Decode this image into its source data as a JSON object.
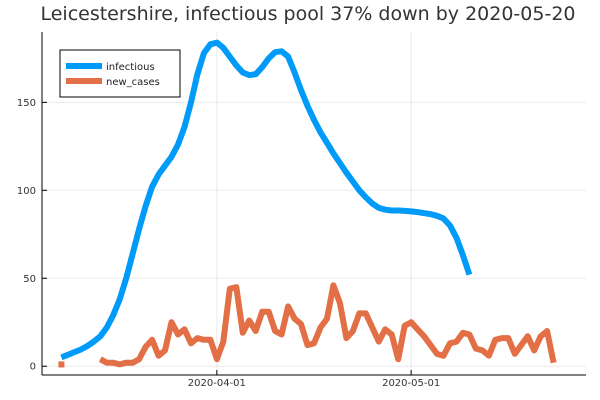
{
  "chart_data": {
    "type": "line",
    "title": "Leicestershire, infectious pool 37% down by 2020-05-20",
    "xlabel": "",
    "ylabel": "",
    "x_start": "2020-03-05",
    "x_end": "2020-05-23",
    "xlim": [
      0,
      84
    ],
    "ylim": [
      -5,
      190
    ],
    "yticks": [
      0,
      50,
      100,
      150
    ],
    "ytick_labels": [
      "0",
      "50",
      "100",
      "150"
    ],
    "xticks": [
      27,
      57
    ],
    "xtick_labels": [
      "2020-04-01",
      "2020-05-01"
    ],
    "grid": true,
    "legend_position": "top-left",
    "series": [
      {
        "name": "infectious",
        "color": "#009af9",
        "x_start": 3,
        "values": [
          5,
          6.5,
          8,
          9.5,
          11.5,
          14,
          17,
          22,
          29,
          38,
          50,
          64,
          78,
          91,
          102,
          109,
          114,
          119,
          126,
          136,
          150,
          166,
          178,
          183,
          184,
          181,
          176,
          171,
          167,
          165.5,
          166,
          170,
          175,
          178.5,
          179,
          176,
          167,
          157,
          148,
          140,
          133,
          127,
          121,
          115.5,
          110,
          105,
          100,
          96,
          92.5,
          90,
          89,
          88.5,
          88.5,
          88.3,
          88,
          87.6,
          87,
          86.5,
          85.5,
          84,
          80,
          73,
          63,
          52
        ]
      },
      {
        "name": "new_cases",
        "color": "#e26f46",
        "x_start": 3,
        "values": [
          1,
          null,
          null,
          null,
          null,
          null,
          4,
          2,
          2,
          1,
          2,
          2,
          4,
          11,
          15,
          6,
          9,
          25,
          18,
          21,
          13,
          16,
          15,
          15,
          4,
          14,
          44,
          45,
          19,
          26,
          20,
          31,
          31,
          20,
          18,
          34,
          27,
          24,
          12,
          13,
          22,
          27,
          46,
          36,
          16,
          20,
          30,
          30,
          22,
          14,
          21,
          18,
          4,
          23,
          25,
          21,
          17,
          12,
          7,
          6,
          13,
          14,
          19,
          18,
          10,
          9,
          6,
          15,
          16,
          16,
          7,
          12,
          17,
          9,
          17,
          20,
          2
        ]
      }
    ]
  }
}
